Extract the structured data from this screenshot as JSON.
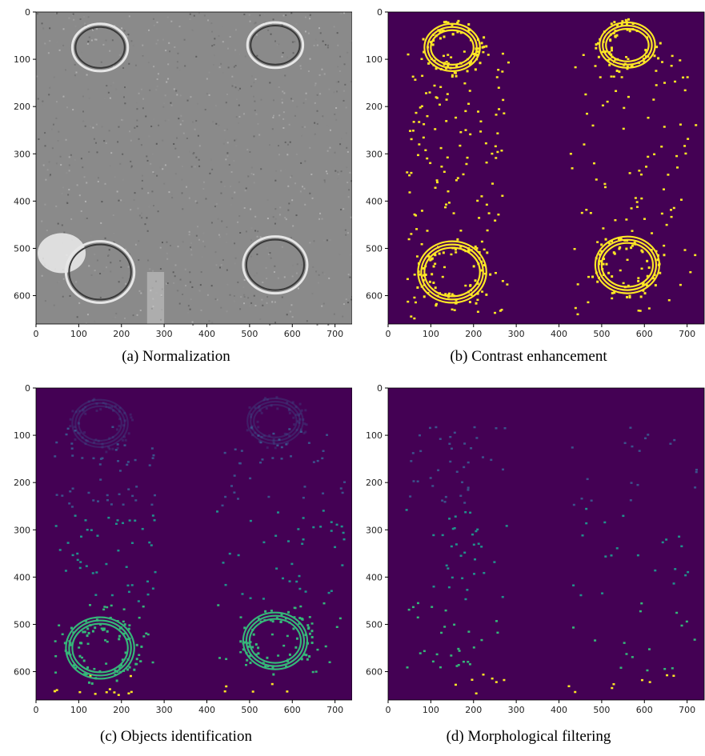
{
  "figure": {
    "panels": [
      {
        "id": "a",
        "caption": "(a) Normalization",
        "style": "grayscale",
        "x_ticks": [
          "0",
          "100",
          "200",
          "300",
          "400",
          "500",
          "600",
          "700"
        ],
        "y_ticks": [
          "0",
          "100",
          "200",
          "300",
          "400",
          "500",
          "600"
        ],
        "xlim": [
          0,
          740
        ],
        "ylim": [
          660,
          0
        ]
      },
      {
        "id": "b",
        "caption": "(b) Contrast enhancement",
        "style": "binary",
        "x_ticks": [
          "0",
          "100",
          "200",
          "300",
          "400",
          "500",
          "600",
          "700"
        ],
        "y_ticks": [
          "0",
          "100",
          "200",
          "300",
          "400",
          "500",
          "600"
        ],
        "xlim": [
          0,
          740
        ],
        "ylim": [
          660,
          0
        ]
      },
      {
        "id": "c",
        "caption": "(c) Objects identification",
        "style": "labels",
        "x_ticks": [
          "0",
          "100",
          "200",
          "300",
          "400",
          "500",
          "600",
          "700"
        ],
        "y_ticks": [
          "0",
          "100",
          "200",
          "300",
          "400",
          "500",
          "600"
        ],
        "xlim": [
          0,
          740
        ],
        "ylim": [
          660,
          0
        ]
      },
      {
        "id": "d",
        "caption": "(d) Morphological filtering",
        "style": "filtered",
        "x_ticks": [
          "0",
          "100",
          "200",
          "300",
          "400",
          "500",
          "600",
          "700"
        ],
        "y_ticks": [
          "0",
          "100",
          "200",
          "300",
          "400",
          "500",
          "600"
        ],
        "xlim": [
          0,
          740
        ],
        "ylim": [
          660,
          0
        ]
      }
    ],
    "colors": {
      "background_purple": "#440154",
      "yellow": "#fde725",
      "green": "#35b779",
      "teal": "#31688e",
      "cyan": "#21918c",
      "dark_blue": "#3b528b",
      "gray_bg": "#8a8a8a"
    },
    "objects": {
      "rings": [
        {
          "cx": 150,
          "cy": 75,
          "rx": 65,
          "ry": 50
        },
        {
          "cx": 560,
          "cy": 70,
          "rx": 65,
          "ry": 48
        },
        {
          "cx": 150,
          "cy": 550,
          "rx": 80,
          "ry": 65
        },
        {
          "cx": 560,
          "cy": 535,
          "rx": 75,
          "ry": 60
        }
      ]
    }
  }
}
